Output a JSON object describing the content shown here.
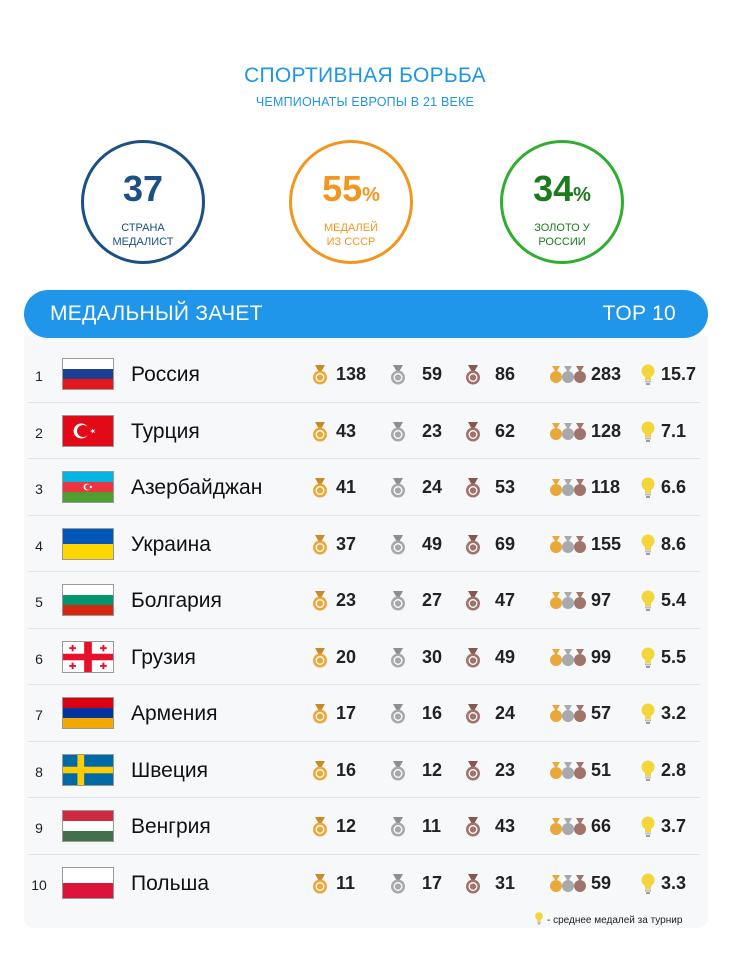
{
  "header": {
    "title": "СПОРТИВНАЯ БОРЬБА",
    "subtitle": "ЧЕМПИОНАТЫ ЕВРОПЫ В 21 ВЕКЕ"
  },
  "stats": [
    {
      "value": "37",
      "suffix": "",
      "label_line1": "СТРАНА",
      "label_line2": "МЕДАЛИСТ",
      "color": "#1b4f86"
    },
    {
      "value": "55",
      "suffix": "%",
      "label_line1": "МЕДАЛЕЙ",
      "label_line2": "ИЗ СССР",
      "color": "#f3961f"
    },
    {
      "value": "34",
      "suffix": "%",
      "label_line1": "ЗОЛОТО У",
      "label_line2": "РОССИИ",
      "color": "#1d7a1d"
    }
  ],
  "table": {
    "title": "МЕДАЛЬНЫЙ ЗАЧЕТ",
    "badge": "TOP 10",
    "rows": [
      {
        "rank": "1",
        "country": "Россия",
        "flag": "russia-flag",
        "gold": "138",
        "silver": "59",
        "bronze": "86",
        "total": "283",
        "avg": "15.7"
      },
      {
        "rank": "2",
        "country": "Турция",
        "flag": "turkey-flag",
        "gold": "43",
        "silver": "23",
        "bronze": "62",
        "total": "128",
        "avg": "7.1"
      },
      {
        "rank": "3",
        "country": "Азербайджан",
        "flag": "azerbaijan-flag",
        "gold": "41",
        "silver": "24",
        "bronze": "53",
        "total": "118",
        "avg": "6.6"
      },
      {
        "rank": "4",
        "country": "Украина",
        "flag": "ukraine-flag",
        "gold": "37",
        "silver": "49",
        "bronze": "69",
        "total": "155",
        "avg": "8.6"
      },
      {
        "rank": "5",
        "country": "Болгария",
        "flag": "bulgaria-flag",
        "gold": "23",
        "silver": "27",
        "bronze": "47",
        "total": "97",
        "avg": "5.4"
      },
      {
        "rank": "6",
        "country": "Грузия",
        "flag": "georgia-flag",
        "gold": "20",
        "silver": "30",
        "bronze": "49",
        "total": "99",
        "avg": "5.5"
      },
      {
        "rank": "7",
        "country": "Армения",
        "flag": "armenia-flag",
        "gold": "17",
        "silver": "16",
        "bronze": "24",
        "total": "57",
        "avg": "3.2"
      },
      {
        "rank": "8",
        "country": "Швеция",
        "flag": "sweden-flag",
        "gold": "16",
        "silver": "12",
        "bronze": "23",
        "total": "51",
        "avg": "2.8"
      },
      {
        "rank": "9",
        "country": "Венгрия",
        "flag": "hungary-flag",
        "gold": "12",
        "silver": "11",
        "bronze": "43",
        "total": "66",
        "avg": "3.7"
      },
      {
        "rank": "10",
        "country": "Польша",
        "flag": "poland-flag",
        "gold": "11",
        "silver": "17",
        "bronze": "31",
        "total": "59",
        "avg": "3.3"
      }
    ]
  },
  "footnote": "- среднее медалей за турнир",
  "colors": {
    "accent": "#1f96ea",
    "gold_medal": "#e9a93a",
    "silver_medal": "#a7a9ac",
    "bronze_medal": "#a0736b",
    "bulb": "#f4d63a"
  }
}
